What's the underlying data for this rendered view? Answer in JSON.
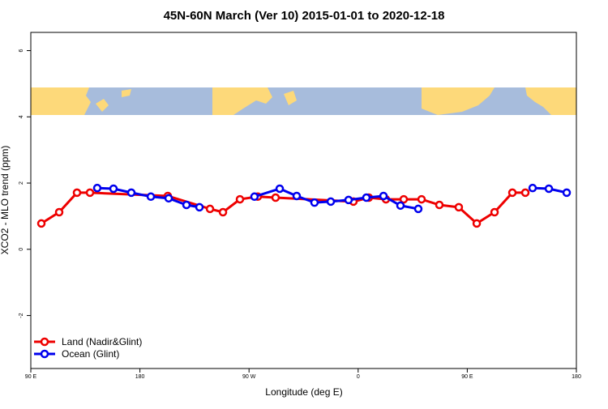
{
  "chart_data": {
    "type": "line",
    "title": "45N-60N March (Ver 10)   2015-01-01 to 2020-12-18",
    "xlabel": "Longitude (deg E)",
    "ylabel": "XCO2 - MLO trend (ppm)",
    "xlim": [
      90,
      540
    ],
    "ylim": [
      -3.6,
      6.55
    ],
    "xticks": [
      {
        "value": 90,
        "label": "90 E"
      },
      180,
      {
        "value": 270,
        "label": "90 W"
      },
      {
        "value": 360,
        "label": "0"
      },
      {
        "value": 450,
        "label": "90 E"
      },
      {
        "value": 540,
        "label": "180"
      }
    ],
    "yticks": [
      -2,
      0,
      2,
      4,
      6
    ],
    "legend": "bottom-left",
    "series": [
      {
        "name": "Land (Nadir&Glint)",
        "color": "#ee0000",
        "x": [
          98.7,
          113.4,
          128.1,
          138.8,
          203,
          237.8,
          248.5,
          262.5,
          277.2,
          291.9,
          356.1,
          368.8,
          382.9,
          397.6,
          412.3,
          427,
          443,
          457.8,
          472.5,
          487.2,
          497.9
        ],
        "values": [
          0.78,
          1.12,
          1.71,
          1.71,
          1.61,
          1.22,
          1.12,
          1.51,
          1.59,
          1.56,
          1.44,
          1.56,
          1.51,
          1.51,
          1.51,
          1.34,
          1.27,
          0.78,
          1.12,
          1.71,
          1.71
        ]
      },
      {
        "name": "Ocean (Glint)",
        "color": "#0000ee",
        "x": [
          144.8,
          158.2,
          172.9,
          189,
          203.7,
          218.4,
          229.1,
          null,
          274.5,
          295.3,
          309.3,
          324,
          337.4,
          352.1,
          366.8,
          380.9,
          394.9,
          409.6,
          null,
          503.9,
          517.3,
          532
        ],
        "values": [
          1.85,
          1.83,
          1.71,
          1.59,
          1.54,
          1.34,
          1.27,
          null,
          1.59,
          1.83,
          1.61,
          1.41,
          1.44,
          1.49,
          1.56,
          1.61,
          1.32,
          1.22,
          null,
          1.85,
          1.83,
          1.71
        ]
      }
    ]
  }
}
